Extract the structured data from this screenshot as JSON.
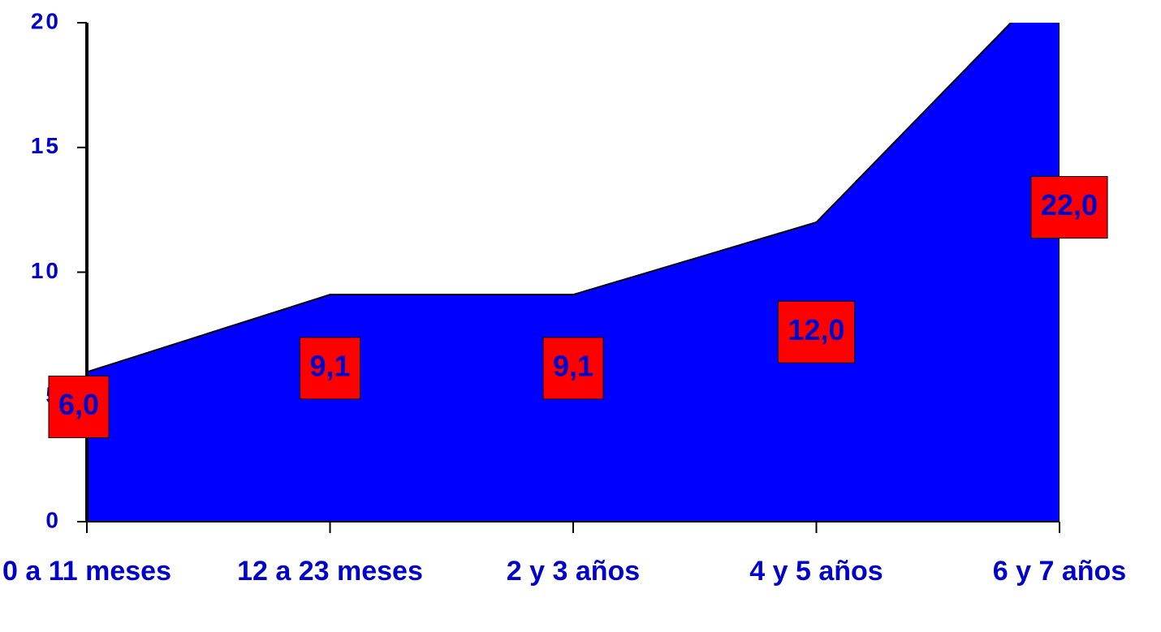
{
  "chart_data": {
    "type": "area",
    "categories": [
      "0 a 11 meses",
      "12 a 23 meses",
      "2 y 3 años",
      "4 y 5 años",
      "6 y 7 años"
    ],
    "values": [
      6.0,
      9.1,
      9.1,
      12.0,
      22.0
    ],
    "value_labels": [
      "6,0",
      "9,1",
      "9,1",
      "12,0",
      "22,0"
    ],
    "color": "#0000ff",
    "label_color": "#ff0000",
    "ylim": [
      0,
      20
    ],
    "yticks": [
      0,
      5,
      10,
      15,
      20
    ]
  }
}
